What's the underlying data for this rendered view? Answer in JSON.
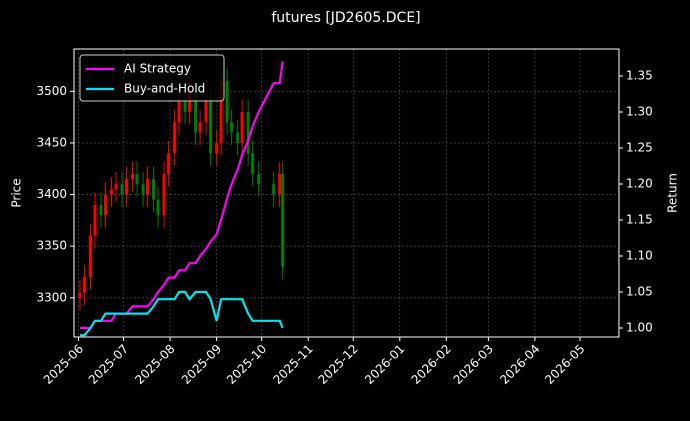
{
  "chart_data": {
    "type": "candlestick",
    "title": "futures [JD2605.DCE]",
    "y_label": "Price",
    "y2_label": "Return",
    "x": [
      "2025-06-02",
      "2025-06-05",
      "2025-06-09",
      "2025-06-12",
      "2025-06-16",
      "2025-06-19",
      "2025-06-23",
      "2025-06-26",
      "2025-06-30",
      "2025-07-03",
      "2025-07-07",
      "2025-07-10",
      "2025-07-14",
      "2025-07-17",
      "2025-07-21",
      "2025-07-24",
      "2025-07-28",
      "2025-07-31",
      "2025-08-04",
      "2025-08-07",
      "2025-08-11",
      "2025-08-14",
      "2025-08-18",
      "2025-08-21",
      "2025-08-25",
      "2025-08-28",
      "2025-09-01",
      "2025-09-04",
      "2025-09-08",
      "2025-09-11",
      "2025-09-15",
      "2025-09-18",
      "2025-09-22",
      "2025-09-25",
      "2025-09-29",
      "2025-10-09",
      "2025-10-13",
      "2025-10-15"
    ],
    "open": [
      3300,
      3305,
      3320,
      3360,
      3390,
      3380,
      3400,
      3405,
      3410,
      3400,
      3415,
      3420,
      3410,
      3400,
      3415,
      3395,
      3380,
      3420,
      3440,
      3470,
      3490,
      3480,
      3500,
      3460,
      3470,
      3490,
      3440,
      3450,
      3510,
      3470,
      3460,
      3450,
      3480,
      3440,
      3420,
      3410,
      3400,
      3420
    ],
    "high": [
      3317,
      3332,
      3372,
      3402,
      3402,
      3412,
      3417,
      3422,
      3422,
      3427,
      3432,
      3432,
      3422,
      3427,
      3427,
      3407,
      3432,
      3452,
      3482,
      3502,
      3502,
      3512,
      3512,
      3482,
      3502,
      3502,
      3462,
      3522,
      3522,
      3482,
      3472,
      3492,
      3492,
      3452,
      3432,
      3422,
      3432,
      3432
    ],
    "low": [
      3288,
      3293,
      3308,
      3348,
      3368,
      3368,
      3388,
      3393,
      3388,
      3388,
      3403,
      3398,
      3388,
      3388,
      3383,
      3368,
      3368,
      3408,
      3428,
      3458,
      3468,
      3468,
      3448,
      3448,
      3458,
      3428,
      3428,
      3438,
      3458,
      3448,
      3438,
      3438,
      3428,
      3408,
      3398,
      3388,
      3388,
      3318
    ],
    "close": [
      3305,
      3320,
      3360,
      3390,
      3380,
      3400,
      3405,
      3410,
      3400,
      3415,
      3420,
      3410,
      3400,
      3415,
      3395,
      3380,
      3420,
      3440,
      3470,
      3490,
      3480,
      3500,
      3460,
      3470,
      3490,
      3440,
      3450,
      3510,
      3470,
      3460,
      3450,
      3480,
      3440,
      3420,
      3410,
      3400,
      3420,
      3330
    ],
    "up_color": "#ff0000",
    "down_color": "#008000",
    "series": [
      {
        "name": "AI Strategy",
        "color": "#ff00ff",
        "axis": "y2",
        "values": [
          1.0,
          1.0,
          1.0,
          1.01,
          1.01,
          1.01,
          1.01,
          1.02,
          1.02,
          1.02,
          1.03,
          1.03,
          1.03,
          1.03,
          1.04,
          1.05,
          1.06,
          1.07,
          1.07,
          1.08,
          1.08,
          1.09,
          1.09,
          1.1,
          1.11,
          1.12,
          1.13,
          1.15,
          1.18,
          1.2,
          1.22,
          1.24,
          1.26,
          1.28,
          1.3,
          1.34,
          1.34,
          1.37
        ]
      },
      {
        "name": "Buy-and-Hold",
        "color": "#00e5ee",
        "axis": "y2",
        "values": [
          0.99,
          0.99,
          1.0,
          1.01,
          1.01,
          1.02,
          1.02,
          1.02,
          1.02,
          1.02,
          1.02,
          1.02,
          1.02,
          1.02,
          1.03,
          1.04,
          1.04,
          1.04,
          1.04,
          1.05,
          1.05,
          1.04,
          1.05,
          1.05,
          1.05,
          1.04,
          1.01,
          1.04,
          1.04,
          1.04,
          1.04,
          1.04,
          1.02,
          1.01,
          1.01,
          1.01,
          1.01,
          1.0
        ]
      }
    ],
    "xlim": [
      "2025-05-29",
      "2026-05-27"
    ],
    "xticks": [
      "2025-06",
      "2025-07",
      "2025-08",
      "2025-09",
      "2025-10",
      "2025-11",
      "2025-12",
      "2026-01",
      "2026-02",
      "2026-03",
      "2026-04",
      "2026-05"
    ],
    "ylim": [
      3262,
      3541
    ],
    "yticks": [
      3300,
      3350,
      3400,
      3450,
      3500
    ],
    "y2lim": [
      0.9875,
      1.3875
    ],
    "y2ticks": [
      {
        "value": 1.0,
        "label": "1.00"
      },
      {
        "value": 1.05,
        "label": "1.05"
      },
      {
        "value": 1.1,
        "label": "1.10"
      },
      {
        "value": 1.15,
        "label": "1.15"
      },
      {
        "value": 1.2,
        "label": "1.20"
      },
      {
        "value": 1.25,
        "label": "1.25"
      },
      {
        "value": 1.3,
        "label": "1.30"
      },
      {
        "value": 1.35,
        "label": "1.35"
      }
    ],
    "grid": true,
    "legend": "upper left"
  }
}
